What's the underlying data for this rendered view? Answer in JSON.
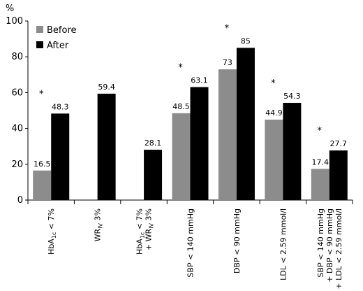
{
  "chart_data": {
    "type": "bar",
    "ylabel": "%",
    "ylim": [
      0,
      100
    ],
    "yticks": [
      0,
      20,
      40,
      60,
      80,
      100
    ],
    "grid": false,
    "legend_position": "top-left",
    "categories": [
      {
        "lines": [
          [
            {
              "t": "HbA"
            },
            {
              "t": "1c",
              "sub": true
            },
            {
              "t": " < 7%"
            }
          ]
        ]
      },
      {
        "lines": [
          [
            {
              "t": "WR"
            },
            {
              "t": "IV",
              "sub": true
            },
            {
              "t": " 3%"
            }
          ]
        ]
      },
      {
        "lines": [
          [
            {
              "t": "HbA"
            },
            {
              "t": "1c",
              "sub": true
            },
            {
              "t": " < 7%"
            }
          ],
          [
            {
              "t": "+ WR"
            },
            {
              "t": "IV",
              "sub": true
            },
            {
              "t": " 3%"
            }
          ]
        ]
      },
      {
        "lines": [
          [
            {
              "t": "SBP < 140 mmHg"
            }
          ]
        ]
      },
      {
        "lines": [
          [
            {
              "t": "DBP < 90 mmHg"
            }
          ]
        ]
      },
      {
        "lines": [
          [
            {
              "t": "LDL < 2.59 mmol/l"
            }
          ]
        ]
      },
      {
        "lines": [
          [
            {
              "t": "SBP < 140 mmHg"
            }
          ],
          [
            {
              "t": "+ DBP < 90 mmHg"
            }
          ],
          [
            {
              "t": "+ LDL < 2.59 mmol/l"
            }
          ]
        ]
      }
    ],
    "series": [
      {
        "name": "Before",
        "color": "#8c8c8c",
        "values": [
          16.5,
          null,
          null,
          48.5,
          73,
          44.9,
          17.4
        ],
        "labels": [
          "16.5",
          "",
          "",
          "48.5",
          "73",
          "44.9",
          "17.4"
        ]
      },
      {
        "name": "After",
        "color": "#000000",
        "values": [
          48.3,
          59.4,
          28.1,
          63.1,
          85,
          54.3,
          27.7
        ],
        "labels": [
          "48.3",
          "59.4",
          "28.1",
          "63.1",
          "85",
          "54.3",
          "27.7"
        ]
      }
    ],
    "significance": [
      "*",
      "",
      "",
      "*",
      "*",
      "*",
      "*"
    ]
  }
}
